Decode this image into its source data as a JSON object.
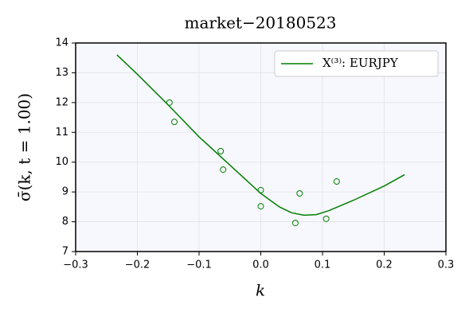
{
  "chart_data": {
    "type": "line",
    "title": "market−20180523",
    "xlabel": "k",
    "ylabel": "σ̄(k, t = 1.00)",
    "xlim": [
      -0.3,
      0.3
    ],
    "ylim": [
      7,
      14
    ],
    "xticks": [
      {
        "value": -0.3,
        "label": "−0.3"
      },
      {
        "value": -0.2,
        "label": "−0.2"
      },
      {
        "value": -0.1,
        "label": "−0.1"
      },
      {
        "value": 0,
        "label": "0.0"
      },
      0.1,
      0.2,
      0.3
    ],
    "yticks": [
      7,
      8,
      9,
      10,
      11,
      12,
      13,
      14
    ],
    "grid": true,
    "legend": "upper right",
    "series": [
      {
        "name": "X⁽³⁾: EURJPY",
        "type": "line",
        "color": "#008000",
        "x": [
          -0.233,
          -0.2,
          -0.15,
          -0.1,
          -0.05,
          0,
          0.03,
          0.05,
          0.07,
          0.09,
          0.11,
          0.15,
          0.2,
          0.233
        ],
        "values": [
          13.6,
          12.95,
          11.92,
          10.85,
          9.9,
          8.95,
          8.5,
          8.3,
          8.22,
          8.24,
          8.37,
          8.72,
          9.2,
          9.58
        ]
      },
      {
        "type": "scatter",
        "color": "#008000",
        "x": [
          -0.148,
          -0.14,
          -0.065,
          -0.061,
          0.0,
          0.0,
          0.056,
          0.063,
          0.106,
          0.123
        ],
        "values": [
          12.0,
          11.35,
          10.37,
          9.75,
          9.06,
          8.52,
          7.96,
          8.95,
          8.1,
          9.35
        ]
      }
    ]
  }
}
